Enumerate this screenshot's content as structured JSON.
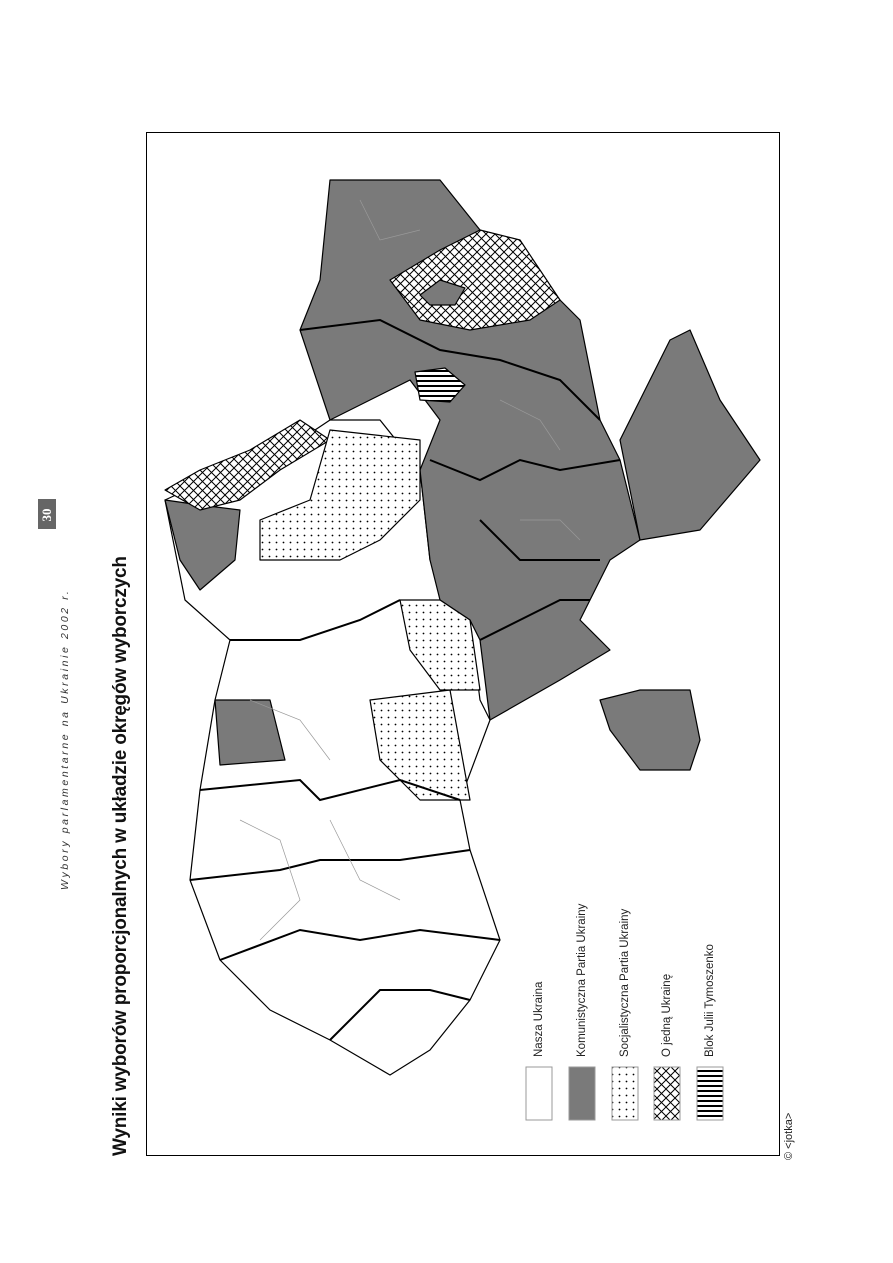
{
  "header": {
    "page_number": "30",
    "running_title": "Wybory parlamentarne na Ukrainie 2002 r."
  },
  "figure": {
    "title": "Wyniki wyborów proporcjonalnych w układzie okręgów wyborczych",
    "legend": [
      {
        "label": "Nasza Ukraina",
        "pattern": "white",
        "color": "#ffffff"
      },
      {
        "label": "Komunistyczna Partia Ukrainy",
        "pattern": "solid-gray",
        "color": "#7a7a7a"
      },
      {
        "label": "Socjalistyczna Partia Ukrainy",
        "pattern": "dots",
        "color": "#000000"
      },
      {
        "label": "O jedną Ukrainę",
        "pattern": "cross-hatch",
        "color": "#000000"
      },
      {
        "label": "Blok Julii Tymoszenko",
        "pattern": "stripes",
        "color": "#000000"
      }
    ],
    "copyright": "© <jotka>"
  }
}
